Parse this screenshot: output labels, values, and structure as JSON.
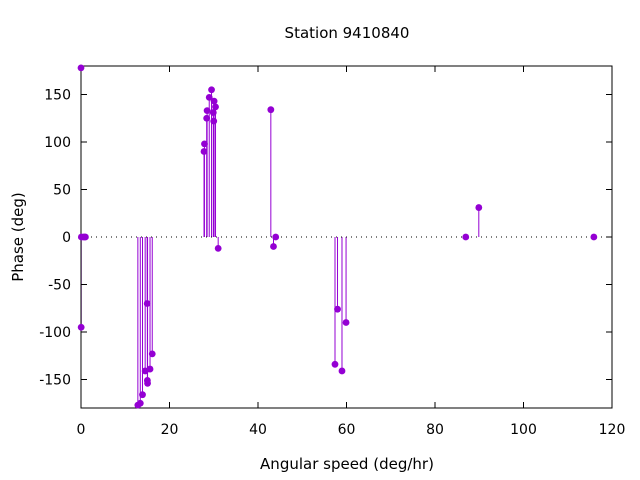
{
  "chart_data": {
    "type": "scatter",
    "style": "impulses",
    "title": "Station 9410840",
    "xlabel": "Angular speed (deg/hr)",
    "ylabel": "Phase (deg)",
    "xlim": [
      0,
      120
    ],
    "ylim": [
      -180,
      180
    ],
    "xticks": [
      0,
      20,
      40,
      60,
      80,
      100,
      120
    ],
    "yticks": [
      -150,
      -100,
      -50,
      0,
      50,
      100,
      150
    ],
    "grid": false,
    "zero_line": "dotted",
    "color": "#9400d3",
    "points": [
      {
        "x": 0.0,
        "y": 178
      },
      {
        "x": 0.04,
        "y": -95
      },
      {
        "x": 0.08,
        "y": 0
      },
      {
        "x": 0.55,
        "y": 0
      },
      {
        "x": 0.82,
        "y": 0
      },
      {
        "x": 1.0,
        "y": 0
      },
      {
        "x": 12.85,
        "y": -177
      },
      {
        "x": 13.4,
        "y": -175
      },
      {
        "x": 13.9,
        "y": -166
      },
      {
        "x": 14.5,
        "y": -141
      },
      {
        "x": 14.96,
        "y": -70
      },
      {
        "x": 15.0,
        "y": -151
      },
      {
        "x": 15.04,
        "y": -154
      },
      {
        "x": 15.6,
        "y": -139
      },
      {
        "x": 16.1,
        "y": -123
      },
      {
        "x": 27.8,
        "y": 90
      },
      {
        "x": 27.9,
        "y": 98
      },
      {
        "x": 28.4,
        "y": 125
      },
      {
        "x": 28.5,
        "y": 133
      },
      {
        "x": 28.98,
        "y": 147
      },
      {
        "x": 29.5,
        "y": 155
      },
      {
        "x": 29.9,
        "y": 131
      },
      {
        "x": 30.0,
        "y": 122
      },
      {
        "x": 30.08,
        "y": 143
      },
      {
        "x": 30.4,
        "y": 137
      },
      {
        "x": 31.0,
        "y": -12
      },
      {
        "x": 42.9,
        "y": 134
      },
      {
        "x": 43.5,
        "y": -10
      },
      {
        "x": 44.0,
        "y": 0
      },
      {
        "x": 57.4,
        "y": -134
      },
      {
        "x": 57.97,
        "y": -76
      },
      {
        "x": 58.98,
        "y": -141
      },
      {
        "x": 59.9,
        "y": -90
      },
      {
        "x": 86.95,
        "y": 0
      },
      {
        "x": 89.9,
        "y": 31
      },
      {
        "x": 115.9,
        "y": 0
      }
    ]
  }
}
